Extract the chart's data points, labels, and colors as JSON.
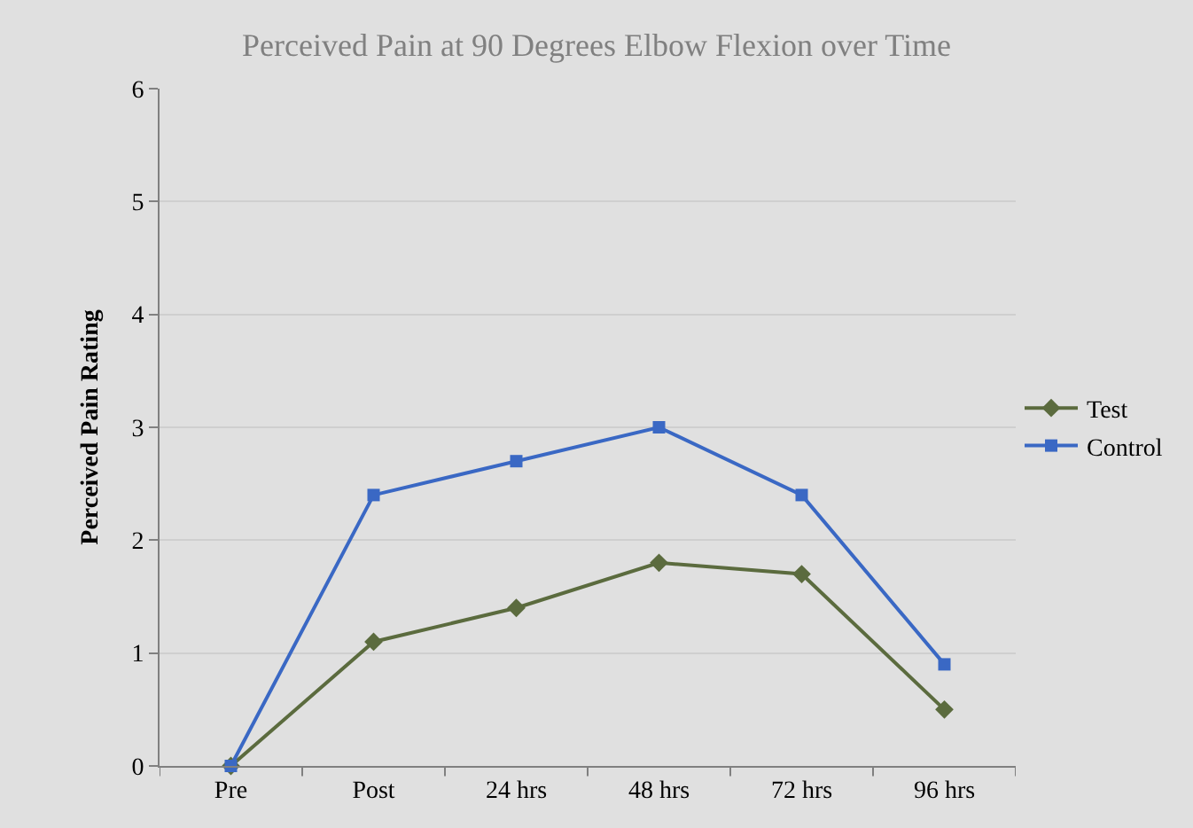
{
  "chart_data": {
    "type": "line",
    "title": "Perceived Pain at 90 Degrees Elbow Flexion over Time",
    "ylabel": "Perceived Pain Rating",
    "categories": [
      "Pre",
      "Post",
      "24 hrs",
      "48 hrs",
      "72 hrs",
      "96 hrs"
    ],
    "series": [
      {
        "name": "Test",
        "color": "#5b6b3e",
        "marker": "diamond",
        "values": [
          0,
          1.1,
          1.4,
          1.8,
          1.7,
          0.5
        ]
      },
      {
        "name": "Control",
        "color": "#3a68c4",
        "marker": "square",
        "values": [
          0,
          2.4,
          2.7,
          3.0,
          2.4,
          0.9
        ]
      }
    ],
    "ylim": [
      0,
      6
    ],
    "yticks": [
      0,
      1,
      2,
      3,
      4,
      5,
      6
    ],
    "grid": "y",
    "legend": "right",
    "line_style": "solid"
  }
}
